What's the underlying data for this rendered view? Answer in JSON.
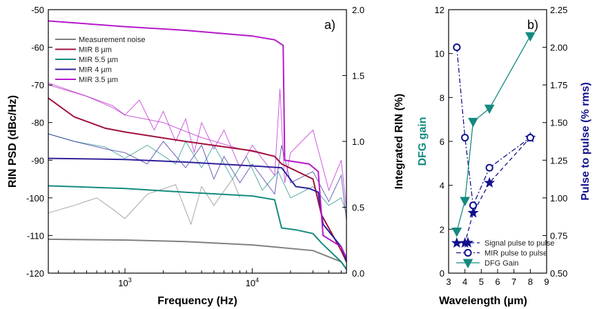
{
  "chart_data": [
    {
      "type": "line",
      "panel_label": "a)",
      "xlabel": "Frequency (Hz)",
      "ylabel_left": "RIN PSD (dBc/Hz)",
      "ylabel_right": "Integrated RIN (%)",
      "x_scale": "log",
      "xlim": [
        250,
        55000
      ],
      "ylim_left": [
        -120,
        -50
      ],
      "ylim_right": [
        0.0,
        2.0
      ],
      "x_ticks": [
        1000,
        10000
      ],
      "x_tick_labels": [
        {
          "base": "10",
          "exp": "3"
        },
        {
          "base": "10",
          "exp": "4"
        }
      ],
      "y_ticks_left": [
        -50,
        -60,
        -70,
        -80,
        -90,
        -100,
        -110,
        -120
      ],
      "y_tick_labels_left": [
        "-50",
        "-60",
        "-70",
        "-80",
        "-90",
        "-100",
        "-110",
        "-120"
      ],
      "y_ticks_right": [
        2.0,
        1.5,
        1.0,
        0.5,
        0.0
      ],
      "y_tick_labels_right": [
        "2.0",
        "1.5",
        "1.0",
        "0.5",
        "0.0"
      ],
      "legend_position": "top-left",
      "colors": {
        "noise": "#808080",
        "mir8": "#a0103a",
        "mir55": "#138a7e",
        "mir4": "#2e1f99",
        "mir35": "#b518c9"
      },
      "legend": [
        {
          "key": "noise",
          "label": "Measurement noise"
        },
        {
          "key": "mir8",
          "label": "MIR 8 µm"
        },
        {
          "key": "mir55",
          "label": "MIR 5.5 µm"
        },
        {
          "key": "mir4",
          "label": "MIR 4 µm"
        },
        {
          "key": "mir35",
          "label": "MIR 3.5 µm"
        }
      ],
      "integrated": [
        {
          "key": "noise",
          "axis": "left",
          "x": [
            250,
            1000,
            3000,
            10000,
            30000,
            50000,
            55000
          ],
          "y": [
            -111,
            -111.2,
            -111.6,
            -112.5,
            -114,
            -117,
            -119
          ]
        },
        {
          "key": "mir8",
          "axis": "left",
          "x": [
            250,
            400,
            700,
            1000,
            3000,
            10000,
            15000,
            17000,
            30000,
            35000,
            50000,
            55000
          ],
          "y": [
            -73.5,
            -78.5,
            -81.5,
            -82.5,
            -85,
            -87.5,
            -89,
            -91,
            -95,
            -104.5,
            -114,
            -117
          ]
        },
        {
          "key": "mir55",
          "axis": "left",
          "x": [
            250,
            1000,
            3000,
            10000,
            15000,
            17000,
            22000,
            30000,
            35000,
            50000,
            55000
          ],
          "y": [
            -96.8,
            -97.5,
            -98.5,
            -99.5,
            -100.5,
            -108,
            -108.5,
            -109.5,
            -112,
            -117,
            -119
          ]
        },
        {
          "key": "mir4",
          "axis": "left",
          "x": [
            250,
            1000,
            3000,
            10000,
            17000,
            22000,
            28000,
            33000,
            36000,
            50000,
            55000
          ],
          "y": [
            -89.5,
            -89.8,
            -90.5,
            -91.5,
            -92,
            -97,
            -97.5,
            -98.5,
            -107,
            -113,
            -117
          ]
        },
        {
          "key": "mir35",
          "axis": "left",
          "x": [
            250,
            1000,
            3000,
            10000,
            15000,
            17500,
            18000,
            28000,
            33000,
            36000,
            50000,
            55000
          ],
          "y": [
            -53,
            -54.5,
            -55.5,
            -57,
            -58,
            -59.5,
            -90,
            -91,
            -93,
            -110,
            -113,
            -116
          ]
        }
      ],
      "psd": [
        {
          "key": "noise",
          "x": [
            250,
            400,
            600,
            800,
            1000,
            1500,
            2500,
            3300,
            4000,
            5000,
            7000,
            8000
          ],
          "y": [
            -104,
            -102,
            -100,
            -103,
            -105.5,
            -99,
            -96.5,
            -107,
            -97,
            -102,
            -95,
            -100
          ]
        },
        {
          "key": "mir55",
          "x": [
            250,
            400,
            700,
            1000,
            1500,
            2500,
            3000,
            4000,
            5000,
            7000,
            9000,
            12000,
            16000,
            20000,
            30000,
            40000,
            50000,
            55000
          ],
          "y": [
            -83,
            -85,
            -86.5,
            -89.5,
            -86,
            -91,
            -85,
            -92,
            -86,
            -95,
            -89,
            -98,
            -93,
            -100,
            -97,
            -102,
            -100,
            -104
          ]
        },
        {
          "key": "mir4",
          "x": [
            250,
            400,
            700,
            1000,
            1500,
            2000,
            3000,
            4000,
            5000,
            6000,
            8000,
            10000,
            15000,
            17000,
            20000,
            30000,
            40000,
            50000,
            55000
          ],
          "y": [
            -83,
            -85,
            -87,
            -88,
            -91,
            -85,
            -92,
            -86,
            -95,
            -89,
            -96,
            -91,
            -99,
            -86,
            -96,
            -93,
            -101,
            -94,
            -106
          ]
        },
        {
          "key": "mir35",
          "x": [
            250,
            500,
            800,
            1000,
            1300,
            1700,
            2000,
            2500,
            3000,
            3500,
            4000,
            5000,
            6000,
            8000,
            10000,
            15000,
            16500,
            18000,
            20000,
            30000,
            40000,
            50000,
            55000
          ],
          "y": [
            -70,
            -73,
            -76,
            -78,
            -74,
            -82,
            -77,
            -85,
            -79,
            -88,
            -80,
            -87,
            -82,
            -92,
            -86,
            -94,
            -71,
            -96,
            -88,
            -82,
            -98,
            -90,
            -103
          ]
        },
        {
          "key": "mir35",
          "x": [
            250,
            500,
            800,
            1000,
            2000,
            4000,
            8000,
            15000
          ],
          "y": [
            -69.5,
            -73,
            -75.5,
            -78,
            -80,
            -84,
            -87,
            -89
          ]
        }
      ]
    },
    {
      "type": "line",
      "panel_label": "b)",
      "xlabel": "Wavelength (µm)",
      "ylabel_left": "DFG gain",
      "ylabel_right": "Pulse to pulse (% rms)",
      "xlim": [
        3,
        9
      ],
      "ylim_left": [
        0,
        12
      ],
      "ylim_right": [
        0.5,
        2.25
      ],
      "x_ticks": [
        3,
        4,
        5,
        6,
        7,
        8,
        9
      ],
      "x_tick_labels": [
        "3",
        "4",
        "5",
        "6",
        "7",
        "8",
        "9"
      ],
      "y_ticks_left": [
        0,
        2,
        4,
        6,
        8,
        10,
        12
      ],
      "y_tick_labels_left": [
        "0",
        "2",
        "4",
        "6",
        "8",
        "10",
        "12"
      ],
      "y_ticks_right": [
        0.5,
        0.75,
        1.0,
        1.25,
        1.5,
        1.75,
        2.0,
        2.25
      ],
      "y_tick_labels_right": [
        "0.50",
        "0.75",
        "1.00",
        "1.25",
        "1.50",
        "1.75",
        "2.00",
        "2.25"
      ],
      "legend_position": "bottom-right",
      "colors": {
        "signal": "#10108c",
        "mir": "#10108c",
        "dfg": "#138a7e",
        "left_label": "#138a7e",
        "right_label": "#10108c"
      },
      "series": [
        {
          "key": "signal",
          "name": "Signal pulse to pulse",
          "axis": "right",
          "marker": "star",
          "dash": "6 4",
          "x": [
            3.5,
            4.0,
            4.5,
            5.5,
            8.0
          ],
          "y": [
            0.7,
            0.7,
            0.9,
            1.1,
            1.4
          ]
        },
        {
          "key": "mir",
          "name": "MIR pulse to pulse",
          "axis": "right",
          "marker": "circle",
          "dash": "7 3 2 3",
          "x": [
            3.5,
            4.0,
            4.5,
            5.5,
            8.0
          ],
          "y": [
            2.0,
            1.4,
            0.95,
            1.2,
            1.4
          ]
        },
        {
          "key": "dfg",
          "name": "DFG Gain",
          "axis": "left",
          "marker": "triangle",
          "dash": "",
          "x": [
            3.5,
            4.0,
            4.5,
            5.5,
            8.0
          ],
          "y": [
            1.9,
            3.3,
            6.9,
            7.5,
            10.8
          ]
        }
      ]
    }
  ]
}
